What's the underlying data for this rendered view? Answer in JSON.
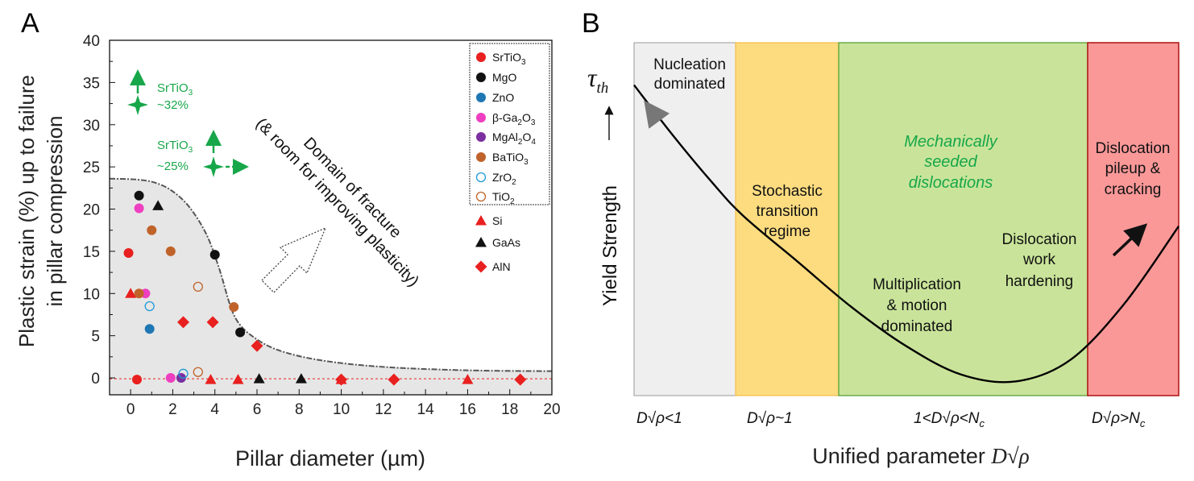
{
  "chart_data": [
    {
      "type": "scatter",
      "panel_label": "A",
      "xlabel": "Pillar diameter (µm)",
      "ylabel_line1": "Plastic strain (%) up to failure",
      "ylabel_line2": "in pillar compression",
      "xlim": [
        -1,
        20
      ],
      "ylim": [
        -2,
        40
      ],
      "xticks": [
        0,
        2,
        4,
        6,
        8,
        10,
        12,
        14,
        16,
        18,
        20
      ],
      "yticks": [
        0,
        5,
        10,
        15,
        20,
        25,
        30,
        35,
        40
      ],
      "series": [
        {
          "name": "SrTiO3",
          "label": "SrTiO",
          "sub": "3",
          "marker": "circle",
          "fill": "#e8201f",
          "points": [
            [
              -0.1,
              14.8
            ],
            [
              0.3,
              -0.2
            ]
          ]
        },
        {
          "name": "MgO",
          "label": "MgO",
          "sub": "",
          "marker": "circle",
          "fill": "#111111",
          "points": [
            [
              0.4,
              21.6
            ],
            [
              4.0,
              14.6
            ],
            [
              5.2,
              5.4
            ]
          ]
        },
        {
          "name": "ZnO",
          "label": "ZnO",
          "sub": "",
          "marker": "circle",
          "fill": "#1f77b4",
          "points": [
            [
              0.9,
              5.8
            ]
          ]
        },
        {
          "name": "b-Ga2O3",
          "label": "β-Ga",
          "sub": "2",
          "tail": "O",
          "sub2": "3",
          "marker": "circle",
          "fill": "#ee3fc0",
          "points": [
            [
              0.4,
              20.1
            ],
            [
              0.7,
              10.0
            ],
            [
              1.9,
              0.0
            ]
          ]
        },
        {
          "name": "MgAl2O4",
          "label": "MgAl",
          "sub": "2",
          "tail": "O",
          "sub2": "4",
          "marker": "circle",
          "fill": "#7b2fa0",
          "points": [
            [
              2.4,
              0.0
            ]
          ]
        },
        {
          "name": "BaTiO3",
          "label": "BaTiO",
          "sub": "3",
          "marker": "circle",
          "fill": "#c0632a",
          "points": [
            [
              1.0,
              17.5
            ],
            [
              1.9,
              15.0
            ],
            [
              0.4,
              10.0
            ],
            [
              4.9,
              8.4
            ]
          ]
        },
        {
          "name": "ZrO2",
          "label": "ZrO",
          "sub": "2",
          "marker": "open-circle",
          "fill": "#1f9ad6",
          "points": [
            [
              0.9,
              8.5
            ],
            [
              2.5,
              0.5
            ]
          ]
        },
        {
          "name": "TiO2",
          "label": "TiO",
          "sub": "2",
          "marker": "open-circle",
          "fill": "#c0632a",
          "points": [
            [
              3.2,
              10.8
            ],
            [
              3.2,
              0.7
            ]
          ]
        },
        {
          "name": "Si",
          "label": "Si",
          "sub": "",
          "marker": "triangle",
          "fill": "#e8201f",
          "points": [
            [
              0.0,
              10.0
            ],
            [
              3.8,
              -0.2
            ],
            [
              5.1,
              -0.2
            ],
            [
              10.0,
              -0.2
            ],
            [
              16.0,
              -0.2
            ]
          ]
        },
        {
          "name": "GaAs",
          "label": "GaAs",
          "sub": "",
          "marker": "triangle",
          "fill": "#111111",
          "points": [
            [
              1.3,
              20.4
            ],
            [
              6.1,
              -0.1
            ],
            [
              8.1,
              -0.1
            ]
          ]
        },
        {
          "name": "AlN",
          "label": "AlN",
          "sub": "",
          "marker": "diamond",
          "fill": "#e8201f",
          "points": [
            [
              2.5,
              6.6
            ],
            [
              3.9,
              6.6
            ],
            [
              6.0,
              3.8
            ],
            [
              10.0,
              -0.2
            ],
            [
              12.5,
              -0.2
            ],
            [
              18.5,
              -0.2
            ]
          ]
        }
      ],
      "boundary_curve": [
        [
          -1,
          23.6
        ],
        [
          0.3,
          23.5
        ],
        [
          1.2,
          23.1
        ],
        [
          2.0,
          22.1
        ],
        [
          2.8,
          20.2
        ],
        [
          3.6,
          17.0
        ],
        [
          4.2,
          13.0
        ],
        [
          4.7,
          8.8
        ],
        [
          5.1,
          6.6
        ],
        [
          5.8,
          4.9
        ],
        [
          7.0,
          3.3
        ],
        [
          9.0,
          2.1
        ],
        [
          12.0,
          1.3
        ],
        [
          16.0,
          0.9
        ],
        [
          20.0,
          0.8
        ]
      ],
      "reference_line_y": -0.1,
      "annotations": {
        "srtio3_32_name": "SrTiO",
        "srtio3_32_sub": "3",
        "srtio3_32_value": "~32%",
        "srtio3_25_name": "SrTiO",
        "srtio3_25_sub": "3",
        "srtio3_25_value": "~25%",
        "fracture_line1": "Domain of fracture",
        "fracture_line2": "(& room for improving plasticity)"
      },
      "colors": {
        "green": "#17a74a",
        "red": "#e8201f",
        "shade": "#e6e6e6"
      }
    },
    {
      "type": "diagram",
      "panel_label": "B",
      "xlabel": "Unified parameter",
      "xlabel_symbol": "D",
      "ylabel": "Yield Strength",
      "y_symbol": "τ",
      "y_symbol_sub": "th",
      "regions": [
        {
          "name": "nucleation",
          "color": "#efefef",
          "border": "#999999",
          "text": [
            "Nucleation",
            "dominated"
          ],
          "cond_prefix": "D",
          "cond_suffix": "<1",
          "cond_sub": ""
        },
        {
          "name": "stochastic",
          "color": "#fddc80",
          "border": "#f3b234",
          "text": [
            "Stochastic",
            "transition",
            "regime"
          ],
          "cond_prefix": "D",
          "cond_suffix": "~1",
          "cond_sub": ""
        },
        {
          "name": "multiplication",
          "color": "#c9e49a",
          "border": "#4c9a28",
          "text": [
            "Mechanically",
            "seeded",
            "dislocations"
          ],
          "text2": [
            "Multiplication",
            "& motion",
            "dominated"
          ],
          "text3": [
            "Dislocation",
            "work",
            "hardening"
          ],
          "cond_prefix": "1<D",
          "cond_suffix": "<N",
          "cond_sub": "c"
        },
        {
          "name": "pileup",
          "color": "#fa9898",
          "border": "#b01010",
          "text": [
            "Dislocation",
            "pileup &",
            "cracking"
          ],
          "cond_prefix": "D",
          "cond_suffix": ">N",
          "cond_sub": "c"
        }
      ],
      "curve": [
        [
          0.0,
          0.88
        ],
        [
          0.07,
          0.74
        ],
        [
          0.14,
          0.61
        ],
        [
          0.2,
          0.51
        ],
        [
          0.3,
          0.38
        ],
        [
          0.4,
          0.25
        ],
        [
          0.5,
          0.14
        ],
        [
          0.6,
          0.06
        ],
        [
          0.7,
          0.04
        ],
        [
          0.8,
          0.1
        ],
        [
          0.9,
          0.26
        ],
        [
          1.0,
          0.48
        ]
      ],
      "colors": {
        "green_text": "#17a74a"
      }
    }
  ]
}
